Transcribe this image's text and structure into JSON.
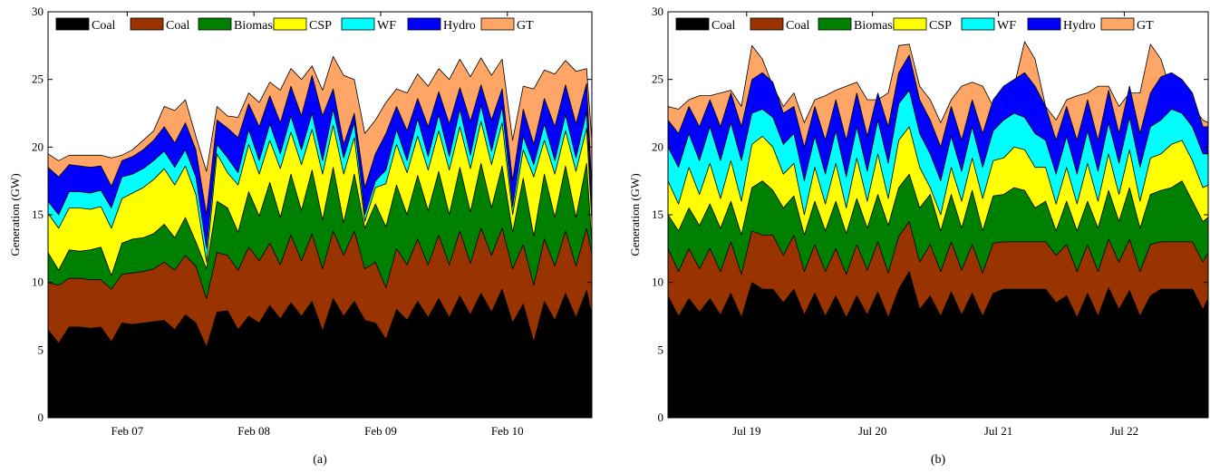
{
  "chart_data": [
    {
      "type": "area",
      "stacked": true,
      "caption": "(a)",
      "ylabel": "Generation (GW)",
      "xlabel": "",
      "ylim": [
        0,
        30
      ],
      "yticks": [
        0,
        5,
        10,
        15,
        20,
        25,
        30
      ],
      "xlim": [
        "2/6 09:00",
        "2/10 16:00"
      ],
      "xticks": [
        {
          "label": "Feb 07",
          "x": "2/7 00:00"
        },
        {
          "label": "Feb 08",
          "x": "2/8 00:00"
        },
        {
          "label": "Feb 09",
          "x": "2/9 00:00"
        },
        {
          "label": "Feb 10",
          "x": "2/10 00:00"
        }
      ],
      "legend_position": "top",
      "grid": false,
      "x": [
        "2/6 09:00",
        "2/6 11:00",
        "2/6 13:00",
        "2/6 15:00",
        "2/6 17:00",
        "2/6 19:00",
        "2/6 21:00",
        "2/6 23:00",
        "2/7 01:00",
        "2/7 03:00",
        "2/7 05:00",
        "2/7 07:00",
        "2/7 09:00",
        "2/7 11:00",
        "2/7 13:00",
        "2/7 15:00",
        "2/7 17:00",
        "2/7 19:00",
        "2/7 21:00",
        "2/7 23:00",
        "2/8 01:00",
        "2/8 03:00",
        "2/8 05:00",
        "2/8 07:00",
        "2/8 09:00",
        "2/8 11:00",
        "2/8 13:00",
        "2/8 15:00",
        "2/8 17:00",
        "2/8 19:00",
        "2/8 21:00",
        "2/8 23:00",
        "2/9 01:00",
        "2/9 03:00",
        "2/9 05:00",
        "2/9 07:00",
        "2/9 09:00",
        "2/9 11:00",
        "2/9 13:00",
        "2/9 15:00",
        "2/9 17:00",
        "2/9 19:00",
        "2/9 21:00",
        "2/9 23:00",
        "2/10 01:00",
        "2/10 03:00",
        "2/10 05:00",
        "2/10 07:00",
        "2/10 09:00",
        "2/10 11:00",
        "2/10 13:00",
        "2/10 15:00",
        "2/10 16:00"
      ],
      "cumulative_top": {
        "Coal": [
          6.5,
          5.5,
          6.7,
          6.7,
          6.6,
          6.7,
          5.6,
          7.0,
          6.9,
          7.0,
          7.1,
          7.2,
          6.5,
          7.6,
          7.0,
          5.2,
          7.8,
          7.9,
          6.5,
          7.5,
          7.0,
          8.3,
          7.3,
          8.5,
          7.5,
          8.6,
          6.4,
          8.8,
          7.5,
          8.6,
          7.2,
          7.0,
          5.8,
          8.0,
          7.2,
          8.6,
          7.4,
          8.8,
          7.4,
          9.0,
          7.6,
          9.2,
          7.8,
          9.5,
          7.0,
          8.4,
          5.6,
          8.6,
          7.2,
          9.2,
          7.4,
          9.4,
          7.6
        ],
        "Coal ": [
          10.0,
          9.8,
          10.3,
          10.3,
          10.2,
          10.2,
          9.5,
          10.6,
          10.7,
          10.8,
          11.0,
          11.5,
          10.9,
          12.0,
          11.2,
          8.8,
          12.2,
          12.0,
          10.9,
          12.6,
          11.6,
          12.9,
          11.3,
          13.5,
          11.6,
          13.6,
          11.0,
          13.8,
          12.0,
          13.8,
          11.0,
          11.5,
          9.6,
          12.5,
          11.3,
          13.2,
          11.3,
          13.5,
          11.3,
          13.8,
          11.4,
          14.0,
          12.0,
          14.0,
          11.0,
          12.8,
          9.8,
          13.2,
          11.2,
          13.8,
          11.2,
          14.0,
          12.1
        ],
        "Biomass": [
          12.2,
          10.9,
          12.4,
          12.3,
          12.4,
          12.6,
          10.5,
          12.9,
          13.2,
          13.3,
          13.6,
          14.3,
          13.3,
          14.8,
          13.0,
          11.0,
          16.0,
          15.5,
          13.7,
          16.7,
          14.9,
          17.4,
          14.8,
          18.0,
          15.3,
          18.3,
          14.6,
          18.5,
          14.4,
          18.0,
          14.0,
          15.8,
          14.1,
          17.2,
          15.0,
          17.9,
          15.3,
          18.2,
          15.0,
          18.5,
          15.2,
          18.8,
          15.5,
          18.6,
          13.7,
          17.7,
          13.4,
          18.0,
          14.8,
          18.6,
          14.8,
          18.8,
          12.9
        ],
        "CSP": [
          15.1,
          14.0,
          15.5,
          15.5,
          15.4,
          15.6,
          14.0,
          16.2,
          16.6,
          17.0,
          17.6,
          18.4,
          17.2,
          18.6,
          16.5,
          11.5,
          19.5,
          18.1,
          17.2,
          20.2,
          18.0,
          20.5,
          18.4,
          21.1,
          18.7,
          21.3,
          18.0,
          21.6,
          18.0,
          20.7,
          14.5,
          17.0,
          17.3,
          20.2,
          18.1,
          20.8,
          18.3,
          21.2,
          18.3,
          21.5,
          18.4,
          21.9,
          18.7,
          21.8,
          15.0,
          19.8,
          17.8,
          20.5,
          18.0,
          21.2,
          18.2,
          21.4,
          14.5
        ],
        "WF": [
          16.0,
          15.0,
          16.7,
          16.7,
          16.6,
          16.8,
          15.5,
          17.8,
          18.0,
          18.4,
          19.0,
          19.7,
          18.5,
          19.8,
          17.8,
          12.5,
          20.2,
          19.2,
          18.1,
          21.3,
          19.0,
          21.7,
          19.5,
          22.3,
          19.8,
          22.5,
          19.0,
          22.8,
          19.2,
          21.8,
          15.0,
          17.5,
          18.3,
          21.3,
          19.0,
          22.1,
          19.3,
          22.4,
          19.3,
          22.8,
          19.4,
          23.1,
          19.7,
          23.0,
          15.6,
          20.8,
          18.7,
          21.7,
          19.0,
          22.4,
          19.2,
          22.6,
          15.2
        ],
        "Hydro": [
          18.5,
          17.8,
          18.7,
          18.6,
          18.5,
          18.6,
          17.1,
          19.0,
          19.3,
          19.8,
          20.5,
          21.5,
          20.3,
          21.8,
          19.8,
          15.0,
          22.0,
          21.4,
          20.7,
          23.2,
          21.5,
          23.8,
          21.8,
          24.5,
          22.3,
          25.3,
          22.3,
          24.3,
          20.2,
          22.5,
          17.0,
          19.5,
          21.0,
          23.0,
          21.2,
          23.6,
          21.5,
          24.1,
          21.7,
          24.4,
          21.9,
          24.6,
          22.0,
          24.3,
          17.5,
          22.8,
          20.2,
          23.6,
          21.5,
          24.6,
          21.7,
          24.7,
          16.9
        ],
        "GT": [
          19.5,
          19.0,
          19.4,
          19.4,
          19.4,
          19.4,
          19.2,
          19.4,
          19.8,
          20.5,
          21.2,
          23.0,
          22.7,
          23.5,
          20.8,
          18.2,
          23.0,
          22.3,
          22.2,
          24.0,
          23.3,
          24.8,
          24.2,
          25.8,
          25.0,
          26.0,
          24.2,
          26.7,
          25.3,
          25.0,
          21.0,
          22.0,
          23.3,
          24.3,
          24.0,
          25.4,
          24.5,
          25.8,
          25.0,
          26.5,
          25.2,
          26.6,
          25.3,
          26.5,
          20.5,
          24.5,
          24.3,
          25.7,
          25.4,
          26.4,
          25.6,
          25.8,
          20.5
        ]
      },
      "series": [
        {
          "name": "Coal",
          "color": "#000000"
        },
        {
          "name": "Coal",
          "color": "#993300"
        },
        {
          "name": "Biomass",
          "color": "#008000"
        },
        {
          "name": "CSP",
          "color": "#ffff00"
        },
        {
          "name": "WF",
          "color": "#00ffff"
        },
        {
          "name": "Hydro",
          "color": "#0000ff"
        },
        {
          "name": "GT",
          "color": "#ffa666"
        }
      ]
    },
    {
      "type": "area",
      "stacked": true,
      "caption": "(b)",
      "ylabel": "Generation (GW)",
      "xlabel": "",
      "ylim": [
        0,
        30
      ],
      "yticks": [
        0,
        5,
        10,
        15,
        20,
        25,
        30
      ],
      "xlim": [
        "7/18 09:00",
        "7/22 16:00"
      ],
      "xticks": [
        {
          "label": "Jul 19",
          "x": "7/19 00:00"
        },
        {
          "label": "Jul 20",
          "x": "7/20 00:00"
        },
        {
          "label": "Jul 21",
          "x": "7/21 00:00"
        },
        {
          "label": "Jul 22",
          "x": "7/22 00:00"
        }
      ],
      "legend_position": "top",
      "grid": false,
      "x": [
        "7/18 09:00",
        "7/18 11:00",
        "7/18 13:00",
        "7/18 15:00",
        "7/18 17:00",
        "7/18 19:00",
        "7/18 21:00",
        "7/18 23:00",
        "7/19 01:00",
        "7/19 03:00",
        "7/19 05:00",
        "7/19 07:00",
        "7/19 09:00",
        "7/19 11:00",
        "7/19 13:00",
        "7/19 15:00",
        "7/19 17:00",
        "7/19 19:00",
        "7/19 21:00",
        "7/19 23:00",
        "7/20 01:00",
        "7/20 03:00",
        "7/20 05:00",
        "7/20 07:00",
        "7/20 09:00",
        "7/20 11:00",
        "7/20 13:00",
        "7/20 15:00",
        "7/20 17:00",
        "7/20 19:00",
        "7/20 21:00",
        "7/20 23:00",
        "7/21 01:00",
        "7/21 03:00",
        "7/21 05:00",
        "7/21 07:00",
        "7/21 09:00",
        "7/21 11:00",
        "7/21 13:00",
        "7/21 15:00",
        "7/21 17:00",
        "7/21 19:00",
        "7/21 21:00",
        "7/21 23:00",
        "7/22 01:00",
        "7/22 03:00",
        "7/22 05:00",
        "7/22 07:00",
        "7/22 09:00",
        "7/22 11:00",
        "7/22 13:00",
        "7/22 15:00",
        "7/22 16:00"
      ],
      "cumulative_top": {
        "Coal": [
          9.0,
          7.5,
          8.8,
          7.8,
          8.8,
          7.6,
          9.2,
          7.4,
          10.0,
          9.5,
          9.5,
          8.5,
          9.5,
          7.6,
          9.2,
          7.5,
          9.0,
          7.4,
          9.0,
          7.6,
          9.3,
          7.4,
          9.5,
          10.8,
          8.0,
          9.0,
          7.5,
          9.3,
          7.6,
          9.2,
          7.5,
          9.2,
          9.5,
          9.5,
          9.5,
          9.5,
          9.5,
          8.5,
          9.0,
          7.4,
          9.2,
          7.5,
          9.6,
          8.0,
          9.4,
          7.5,
          9.0,
          9.5,
          9.5,
          9.5,
          9.5,
          8.0,
          8.8
        ],
        "Coal ": [
          12.5,
          10.8,
          12.5,
          11.0,
          12.5,
          10.8,
          13.0,
          10.6,
          13.8,
          13.5,
          13.5,
          12.0,
          13.5,
          10.8,
          12.8,
          10.8,
          12.5,
          10.6,
          12.8,
          10.9,
          13.0,
          10.7,
          13.4,
          14.5,
          11.5,
          12.8,
          10.8,
          13.0,
          10.9,
          12.8,
          10.7,
          12.9,
          13.0,
          13.0,
          13.0,
          13.0,
          13.0,
          12.0,
          12.8,
          10.8,
          12.8,
          10.8,
          13.2,
          11.5,
          13.2,
          10.8,
          12.8,
          13.0,
          13.0,
          13.0,
          13.0,
          11.5,
          12.2
        ],
        "Biomass": [
          15.0,
          13.8,
          15.5,
          14.2,
          15.8,
          14.0,
          16.0,
          13.5,
          17.0,
          17.5,
          16.8,
          15.5,
          16.4,
          13.5,
          16.0,
          13.8,
          16.0,
          13.6,
          16.2,
          14.0,
          16.5,
          14.2,
          17.0,
          18.0,
          15.5,
          16.5,
          13.8,
          16.5,
          14.0,
          16.8,
          13.8,
          16.4,
          16.5,
          17.0,
          16.8,
          15.5,
          16.0,
          13.8,
          16.0,
          13.8,
          16.0,
          14.0,
          16.8,
          14.5,
          17.0,
          14.0,
          16.5,
          16.8,
          17.0,
          17.5,
          16.0,
          14.5,
          14.8
        ],
        "CSP": [
          17.5,
          15.8,
          18.5,
          16.5,
          18.8,
          16.2,
          19.0,
          16.0,
          20.2,
          20.8,
          20.0,
          18.0,
          18.8,
          15.0,
          18.5,
          15.8,
          18.8,
          15.5,
          19.2,
          16.0,
          19.5,
          16.2,
          20.5,
          21.5,
          18.5,
          17.0,
          15.0,
          18.5,
          16.0,
          19.2,
          16.2,
          19.0,
          19.2,
          20.0,
          19.8,
          18.5,
          18.5,
          15.8,
          18.5,
          15.8,
          18.8,
          16.0,
          19.5,
          16.5,
          19.8,
          16.0,
          19.2,
          19.5,
          20.2,
          20.5,
          19.0,
          17.0,
          17.2
        ],
        "WF": [
          20.0,
          18.5,
          21.0,
          19.0,
          21.5,
          19.0,
          21.8,
          19.0,
          22.5,
          22.8,
          22.2,
          20.2,
          21.0,
          17.5,
          20.8,
          18.0,
          21.2,
          17.8,
          21.5,
          18.2,
          22.0,
          18.8,
          23.2,
          24.2,
          21.0,
          19.5,
          17.5,
          20.8,
          18.2,
          21.5,
          18.5,
          21.2,
          22.0,
          22.5,
          22.2,
          21.0,
          20.5,
          18.0,
          20.8,
          18.0,
          21.2,
          18.2,
          21.8,
          18.8,
          22.2,
          18.5,
          21.5,
          22.0,
          22.8,
          22.5,
          21.5,
          19.5,
          19.5
        ],
        "Hydro": [
          22.0,
          21.0,
          23.0,
          21.5,
          23.5,
          21.5,
          24.0,
          21.5,
          25.0,
          25.5,
          24.8,
          22.5,
          23.0,
          20.0,
          23.0,
          20.5,
          23.5,
          20.5,
          24.0,
          20.8,
          24.0,
          21.5,
          25.5,
          26.8,
          23.5,
          22.0,
          20.0,
          23.0,
          20.5,
          23.5,
          21.0,
          23.5,
          24.5,
          25.0,
          25.5,
          24.5,
          23.0,
          20.5,
          23.0,
          20.5,
          23.5,
          20.5,
          24.2,
          21.0,
          24.5,
          21.0,
          24.0,
          25.2,
          25.5,
          25.0,
          24.0,
          21.5,
          21.5
        ],
        "GT": [
          23.0,
          22.8,
          23.5,
          23.8,
          23.8,
          24.0,
          24.2,
          23.0,
          27.5,
          26.5,
          24.5,
          23.0,
          24.0,
          21.8,
          23.5,
          23.8,
          24.2,
          24.5,
          24.8,
          23.5,
          23.5,
          24.0,
          27.5,
          27.6,
          24.5,
          23.5,
          21.8,
          23.5,
          24.5,
          24.8,
          24.5,
          23.0,
          24.0,
          24.5,
          27.8,
          26.5,
          23.0,
          22.0,
          23.5,
          23.8,
          24.0,
          24.5,
          24.5,
          23.0,
          24.0,
          24.0,
          27.6,
          26.5,
          24.0,
          23.5,
          23.0,
          22.0,
          21.8
        ]
      },
      "series": [
        {
          "name": "Coal",
          "color": "#000000"
        },
        {
          "name": "Coal",
          "color": "#993300"
        },
        {
          "name": "Biomass",
          "color": "#008000"
        },
        {
          "name": "CSP",
          "color": "#ffff00"
        },
        {
          "name": "WF",
          "color": "#00ffff"
        },
        {
          "name": "Hydro",
          "color": "#0000ff"
        },
        {
          "name": "GT",
          "color": "#ffa666"
        }
      ]
    }
  ]
}
